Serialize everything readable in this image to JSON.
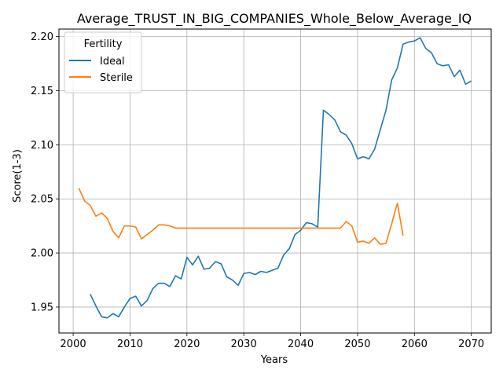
{
  "chart_data": {
    "type": "line",
    "title": "Average_TRUST_IN_BIG_COMPANIES_Whole_Below_Average_IQ",
    "xlabel": "Years",
    "ylabel": "Score(1-3)",
    "xlim": [
      1997.5,
      2073.5
    ],
    "ylim": [
      1.926,
      2.207
    ],
    "xticks": [
      2000,
      2010,
      2020,
      2030,
      2040,
      2050,
      2060,
      2070
    ],
    "yticks": [
      1.95,
      2.0,
      2.05,
      2.1,
      2.15,
      2.2
    ],
    "ytick_labels": [
      "1.95",
      "2.00",
      "2.05",
      "2.10",
      "2.15",
      "2.20"
    ],
    "grid": true,
    "legend": {
      "title": "Fertility",
      "placement": "top-left"
    },
    "series": [
      {
        "name": "Ideal",
        "color": "#1f77b4",
        "x": [
          2003,
          2004,
          2005,
          2006,
          2007,
          2008,
          2009,
          2010,
          2011,
          2012,
          2013,
          2014,
          2015,
          2016,
          2017,
          2018,
          2019,
          2020,
          2021,
          2022,
          2023,
          2024,
          2025,
          2026,
          2027,
          2028,
          2029,
          2030,
          2031,
          2032,
          2033,
          2034,
          2035,
          2036,
          2037,
          2038,
          2039,
          2040,
          2041,
          2042,
          2043,
          2044,
          2045,
          2046,
          2047,
          2048,
          2049,
          2050,
          2051,
          2052,
          2053,
          2054,
          2055,
          2056,
          2057,
          2058,
          2059,
          2060,
          2061,
          2062,
          2063,
          2064,
          2065,
          2066,
          2067,
          2068,
          2069,
          2070
        ],
        "values": [
          1.962,
          1.951,
          1.941,
          1.94,
          1.944,
          1.941,
          1.95,
          1.958,
          1.96,
          1.951,
          1.956,
          1.967,
          1.972,
          1.972,
          1.969,
          1.979,
          1.976,
          1.996,
          1.989,
          1.997,
          1.985,
          1.986,
          1.992,
          1.99,
          1.978,
          1.975,
          1.97,
          1.981,
          1.982,
          1.98,
          1.983,
          1.982,
          1.984,
          1.986,
          1.998,
          2.004,
          2.017,
          2.021,
          2.028,
          2.027,
          2.024,
          2.132,
          2.128,
          2.123,
          2.112,
          2.109,
          2.101,
          2.087,
          2.089,
          2.087,
          2.096,
          2.114,
          2.132,
          2.16,
          2.171,
          2.193,
          2.195,
          2.196,
          2.199,
          2.189,
          2.185,
          2.175,
          2.173,
          2.174,
          2.163,
          2.169,
          2.156,
          2.159
        ]
      },
      {
        "name": "Sterile",
        "color": "#ff7f0e",
        "x": [
          2001,
          2002,
          2003,
          2004,
          2005,
          2006,
          2007,
          2008,
          2009,
          2010,
          2011,
          2012,
          2013,
          2014,
          2015,
          2016,
          2017,
          2018,
          2019,
          2020,
          2021,
          2022,
          2023,
          2024,
          2025,
          2026,
          2027,
          2028,
          2029,
          2030,
          2031,
          2032,
          2033,
          2034,
          2035,
          2036,
          2037,
          2038,
          2039,
          2040,
          2041,
          2042,
          2043,
          2044,
          2045,
          2046,
          2047,
          2048,
          2049,
          2050,
          2051,
          2052,
          2053,
          2054,
          2055,
          2056,
          2057,
          2058
        ],
        "values": [
          2.06,
          2.048,
          2.044,
          2.034,
          2.037,
          2.032,
          2.02,
          2.014,
          2.025,
          2.025,
          2.024,
          2.013,
          2.017,
          2.021,
          2.026,
          2.026,
          2.025,
          2.023,
          2.023,
          2.023,
          2.023,
          2.023,
          2.023,
          2.023,
          2.023,
          2.023,
          2.023,
          2.023,
          2.023,
          2.023,
          2.023,
          2.023,
          2.023,
          2.023,
          2.023,
          2.023,
          2.023,
          2.023,
          2.023,
          2.023,
          2.023,
          2.023,
          2.023,
          2.023,
          2.023,
          2.023,
          2.023,
          2.029,
          2.025,
          2.01,
          2.011,
          2.009,
          2.014,
          2.008,
          2.009,
          2.027,
          2.046,
          2.016
        ]
      }
    ]
  }
}
